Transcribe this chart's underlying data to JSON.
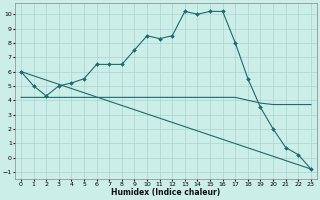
{
  "title": "",
  "xlabel": "Humidex (Indice chaleur)",
  "bg_color": "#cceee8",
  "grid_color": "#aad4ce",
  "line_color": "#1a6b6b",
  "xlim": [
    -0.5,
    23.5
  ],
  "ylim": [
    -1.5,
    10.8
  ],
  "xticks": [
    0,
    1,
    2,
    3,
    4,
    5,
    6,
    7,
    8,
    9,
    10,
    11,
    12,
    13,
    14,
    15,
    16,
    17,
    18,
    19,
    20,
    21,
    22,
    23
  ],
  "yticks": [
    -1,
    0,
    1,
    2,
    3,
    4,
    5,
    6,
    7,
    8,
    9,
    10
  ],
  "curve1_x": [
    0,
    1,
    2,
    3,
    4,
    5,
    6,
    7,
    8,
    9,
    10,
    11,
    12,
    13,
    14,
    15,
    16,
    17,
    18,
    19,
    20,
    21,
    22,
    23
  ],
  "curve1_y": [
    6.0,
    5.0,
    4.3,
    5.0,
    5.2,
    5.5,
    6.5,
    6.5,
    6.5,
    7.5,
    8.5,
    8.3,
    8.5,
    10.2,
    10.0,
    10.2,
    10.2,
    8.0,
    5.5,
    3.5,
    2.0,
    0.7,
    0.2,
    -0.8
  ],
  "curve2_x": [
    0,
    1,
    2,
    3,
    4,
    5,
    6,
    7,
    8,
    9,
    10,
    11,
    12,
    13,
    14,
    15,
    16,
    17,
    18,
    19,
    20,
    21,
    22,
    23
  ],
  "curve2_y": [
    4.2,
    4.2,
    4.2,
    4.2,
    4.2,
    4.2,
    4.2,
    4.2,
    4.2,
    4.2,
    4.2,
    4.2,
    4.2,
    4.2,
    4.2,
    4.2,
    4.2,
    4.2,
    4.0,
    3.8,
    3.7,
    3.7,
    3.7,
    3.7
  ],
  "curve3_x": [
    0,
    23
  ],
  "curve3_y": [
    6.0,
    -0.8
  ]
}
